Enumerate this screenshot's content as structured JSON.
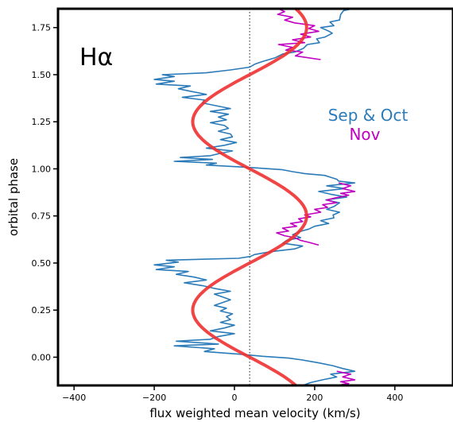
{
  "chart_data": {
    "type": "line",
    "xlabel": "flux weighted mean velocity (km/s)",
    "ylabel": "orbital phase",
    "xlim": [
      -440,
      545
    ],
    "ylim": [
      -0.15,
      1.85
    ],
    "xticks": [
      -400,
      -200,
      0,
      200,
      400
    ],
    "yticks": [
      0.0,
      0.25,
      0.5,
      0.75,
      1.0,
      1.25,
      1.5,
      1.75
    ],
    "xtick_labels": [
      "−400",
      "−200",
      "0",
      "200",
      "400"
    ],
    "ytick_labels": [
      "0.00",
      "0.25",
      "0.50",
      "0.75",
      "1.00",
      "1.25",
      "1.50",
      "1.75"
    ],
    "panel_label": "Hα",
    "reference_line": {
      "x": 38,
      "style": "dotted"
    },
    "legend": [
      {
        "name": "Sep & Oct",
        "color": "#2b7bb9"
      },
      {
        "name": "Nov",
        "color": "#c000c0"
      }
    ],
    "model": {
      "color": "#f03030",
      "gamma": 38,
      "amplitude": 142,
      "phase_range": [
        -0.15,
        1.85
      ]
    },
    "series": [
      {
        "name": "Sep & Oct",
        "color": "#2b7bb9",
        "points": [
          [
            295,
            1.85
          ],
          [
            272,
            1.84
          ],
          [
            265,
            1.82
          ],
          [
            262,
            1.79
          ],
          [
            238,
            1.78
          ],
          [
            248,
            1.76
          ],
          [
            215,
            1.75
          ],
          [
            236,
            1.73
          ],
          [
            244,
            1.72
          ],
          [
            226,
            1.7
          ],
          [
            205,
            1.69
          ],
          [
            212,
            1.67
          ],
          [
            182,
            1.66
          ],
          [
            172,
            1.64
          ],
          [
            150,
            1.62
          ],
          [
            120,
            1.61
          ],
          [
            102,
            1.59
          ],
          [
            70,
            1.57
          ],
          [
            50,
            1.555
          ],
          [
            38,
            1.54
          ],
          [
            -10,
            1.525
          ],
          [
            -70,
            1.51
          ],
          [
            -180,
            1.5
          ],
          [
            -150,
            1.49
          ],
          [
            -200,
            1.475
          ],
          [
            -150,
            1.465
          ],
          [
            -195,
            1.45
          ],
          [
            -110,
            1.44
          ],
          [
            -140,
            1.425
          ],
          [
            -105,
            1.41
          ],
          [
            -70,
            1.395
          ],
          [
            -130,
            1.38
          ],
          [
            -75,
            1.365
          ],
          [
            -80,
            1.35
          ],
          [
            -45,
            1.335
          ],
          [
            -10,
            1.32
          ],
          [
            -60,
            1.305
          ],
          [
            -15,
            1.29
          ],
          [
            -40,
            1.275
          ],
          [
            -20,
            1.26
          ],
          [
            -60,
            1.245
          ],
          [
            -25,
            1.23
          ],
          [
            -15,
            1.215
          ],
          [
            -40,
            1.2
          ],
          [
            -10,
            1.185
          ],
          [
            -5,
            1.17
          ],
          [
            -35,
            1.155
          ],
          [
            5,
            1.14
          ],
          [
            -25,
            1.125
          ],
          [
            -70,
            1.11
          ],
          [
            -5,
            1.095
          ],
          [
            -40,
            1.08
          ],
          [
            -60,
            1.07
          ],
          [
            -135,
            1.06
          ],
          [
            -55,
            1.05
          ],
          [
            -150,
            1.04
          ],
          [
            -45,
            1.03
          ],
          [
            -70,
            1.02
          ],
          [
            15,
            1.01
          ],
          [
            55,
            1.005
          ],
          [
            120,
            0.995
          ],
          [
            145,
            0.985
          ],
          [
            175,
            0.975
          ],
          [
            225,
            0.965
          ],
          [
            240,
            0.955
          ],
          [
            255,
            0.945
          ],
          [
            260,
            0.935
          ],
          [
            300,
            0.925
          ],
          [
            230,
            0.91
          ],
          [
            275,
            0.895
          ],
          [
            210,
            0.88
          ],
          [
            240,
            0.865
          ],
          [
            280,
            0.85
          ],
          [
            228,
            0.835
          ],
          [
            262,
            0.82
          ],
          [
            248,
            0.8
          ],
          [
            230,
            0.785
          ],
          [
            262,
            0.77
          ],
          [
            246,
            0.755
          ],
          [
            248,
            0.74
          ],
          [
            215,
            0.725
          ],
          [
            235,
            0.71
          ],
          [
            200,
            0.695
          ],
          [
            185,
            0.68
          ],
          [
            160,
            0.665
          ],
          [
            145,
            0.65
          ],
          [
            165,
            0.635
          ],
          [
            130,
            0.62
          ],
          [
            120,
            0.605
          ],
          [
            170,
            0.59
          ],
          [
            150,
            0.575
          ],
          [
            90,
            0.56
          ],
          [
            50,
            0.545
          ],
          [
            40,
            0.535
          ],
          [
            10,
            0.525
          ],
          [
            -170,
            0.515
          ],
          [
            -140,
            0.505
          ],
          [
            -200,
            0.49
          ],
          [
            -150,
            0.48
          ],
          [
            -195,
            0.465
          ],
          [
            -115,
            0.455
          ],
          [
            -145,
            0.44
          ],
          [
            -100,
            0.425
          ],
          [
            -70,
            0.41
          ],
          [
            -125,
            0.395
          ],
          [
            -80,
            0.38
          ],
          [
            -50,
            0.365
          ],
          [
            -10,
            0.35
          ],
          [
            -50,
            0.335
          ],
          [
            -30,
            0.32
          ],
          [
            -10,
            0.305
          ],
          [
            -30,
            0.29
          ],
          [
            -50,
            0.275
          ],
          [
            -20,
            0.26
          ],
          [
            -35,
            0.245
          ],
          [
            -5,
            0.23
          ],
          [
            -20,
            0.215
          ],
          [
            -10,
            0.2
          ],
          [
            -35,
            0.185
          ],
          [
            0,
            0.17
          ],
          [
            -25,
            0.155
          ],
          [
            -60,
            0.14
          ],
          [
            0,
            0.125
          ],
          [
            -40,
            0.11
          ],
          [
            -60,
            0.095
          ],
          [
            -145,
            0.085
          ],
          [
            -40,
            0.07
          ],
          [
            -150,
            0.06
          ],
          [
            -50,
            0.045
          ],
          [
            -75,
            0.03
          ],
          [
            20,
            0.015
          ],
          [
            70,
            0.005
          ],
          [
            135,
            -0.005
          ],
          [
            170,
            -0.015
          ],
          [
            210,
            -0.03
          ],
          [
            245,
            -0.045
          ],
          [
            270,
            -0.06
          ],
          [
            300,
            -0.075
          ],
          [
            240,
            -0.09
          ],
          [
            255,
            -0.105
          ],
          [
            220,
            -0.12
          ],
          [
            190,
            -0.135
          ],
          [
            170,
            -0.15
          ]
        ]
      },
      {
        "name": "Nov",
        "color": "#c000c0",
        "points": [
          [
            215,
            1.58
          ],
          [
            152,
            1.6
          ],
          [
            170,
            1.62
          ],
          [
            128,
            1.63
          ],
          [
            145,
            1.645
          ],
          [
            110,
            1.66
          ],
          [
            175,
            1.67
          ],
          [
            145,
            1.685
          ],
          [
            190,
            1.7
          ],
          [
            165,
            1.715
          ],
          [
            210,
            1.73
          ],
          [
            185,
            1.745
          ],
          [
            200,
            1.76
          ],
          [
            150,
            1.775
          ],
          [
            125,
            1.79
          ],
          [
            145,
            1.805
          ],
          [
            108,
            1.82
          ],
          [
            125,
            1.835
          ],
          [
            110,
            1.85
          ],
          [
            260,
            0.925
          ],
          [
            290,
            0.91
          ],
          [
            270,
            0.895
          ],
          [
            300,
            0.88
          ],
          [
            265,
            0.87
          ],
          [
            285,
            0.86
          ],
          [
            250,
            0.845
          ],
          [
            230,
            0.835
          ],
          [
            255,
            0.82
          ],
          [
            220,
            0.81
          ],
          [
            232,
            0.795
          ],
          [
            200,
            0.785
          ],
          [
            215,
            0.77
          ],
          [
            175,
            0.755
          ],
          [
            190,
            0.745
          ],
          [
            160,
            0.735
          ],
          [
            170,
            0.72
          ],
          [
            140,
            0.71
          ],
          [
            155,
            0.695
          ],
          [
            120,
            0.685
          ],
          [
            135,
            0.67
          ],
          [
            105,
            0.66
          ],
          [
            125,
            0.645
          ],
          [
            150,
            0.635
          ],
          [
            165,
            0.62
          ],
          [
            185,
            0.61
          ],
          [
            210,
            0.595
          ],
          [
            255,
            -0.075
          ],
          [
            290,
            -0.09
          ],
          [
            270,
            -0.105
          ],
          [
            300,
            -0.12
          ],
          [
            265,
            -0.13
          ],
          [
            285,
            -0.14
          ],
          [
            255,
            -0.15
          ]
        ]
      }
    ]
  }
}
